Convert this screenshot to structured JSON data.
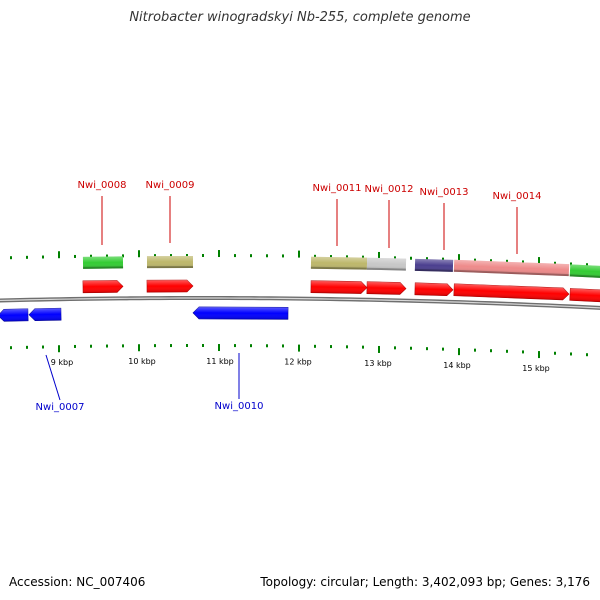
{
  "header": {
    "title": "Nitrobacter winogradskyi Nb-255, complete genome"
  },
  "footer": {
    "accession": "Accession: NC_007406",
    "summary": "Topology: circular; Length: 3,402,093 bp; Genes: 3,176"
  },
  "colors": {
    "gene_forward": "#ff0000",
    "gene_reverse": "#0000ff",
    "backbone": "#7a7a7a",
    "tick": "#008000",
    "label_forward": "#cc0000",
    "label_reverse": "#0000cc",
    "cog_green": "#33cc33",
    "cog_khaki": "#bdb76b",
    "cog_gray": "#c8c8c8",
    "cog_navy": "#4b3f8f",
    "cog_pink": "#ee8a8a"
  },
  "map": {
    "scale_labels": [
      "9 kbp",
      "10 kbp",
      "11 kbp",
      "12 kbp",
      "13 kbp",
      "14 kbp",
      "15 kbp"
    ],
    "forward_genes": [
      {
        "id": "gene-nwi-0008",
        "label": "Nwi_0008",
        "cog": "cog_green"
      },
      {
        "id": "gene-nwi-0009",
        "label": "Nwi_0009",
        "cog": "cog_khaki"
      },
      {
        "id": "gene-nwi-0011",
        "label": "Nwi_0011",
        "cog": "cog_khaki"
      },
      {
        "id": "gene-nwi-0012",
        "label": "Nwi_0012",
        "cog": "cog_gray"
      },
      {
        "id": "gene-nwi-0013",
        "label": "Nwi_0013",
        "cog": "cog_navy"
      },
      {
        "id": "gene-nwi-0014",
        "label": "Nwi_0014",
        "cog": "cog_pink"
      },
      {
        "id": "gene-unlabeled-right",
        "label": "",
        "cog": "cog_green"
      }
    ],
    "reverse_genes": [
      {
        "id": "gene-unlabeled-left",
        "label": ""
      },
      {
        "id": "gene-nwi-0007",
        "label": "Nwi_0007"
      },
      {
        "id": "gene-nwi-0010",
        "label": "Nwi_0010"
      }
    ]
  }
}
